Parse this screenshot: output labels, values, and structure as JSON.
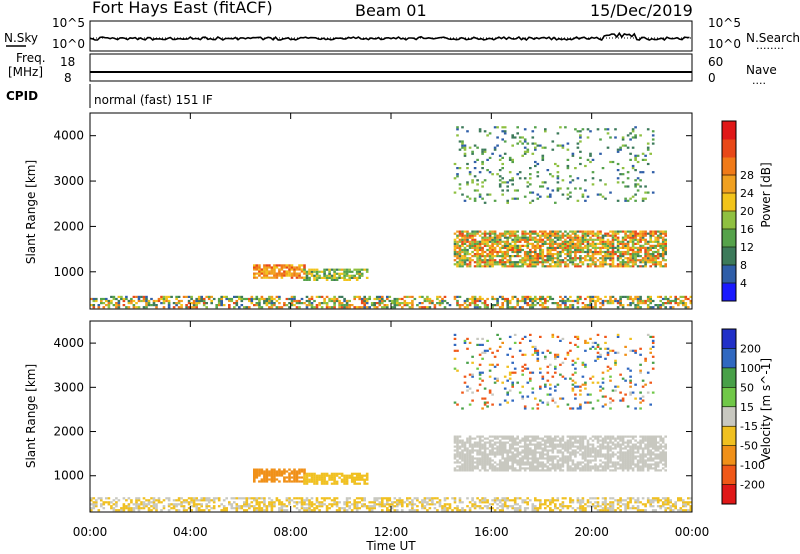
{
  "header": {
    "station": "Fort Hays East (fitACF)",
    "beam": "Beam 01",
    "date": "15/Dec/2019"
  },
  "noise_panel": {
    "left_label": "N.Sky",
    "left_ticks": [
      "10^5",
      "10^0"
    ],
    "right_ticks": [
      "10^5",
      "10^0"
    ],
    "right_label": "N.Search",
    "right_legend": "........"
  },
  "freq_panel": {
    "left_label_line1": "Freq.",
    "left_label_line2": "[MHz]",
    "left_ticks": [
      "18",
      "8"
    ],
    "right_ticks": [
      "60",
      "0"
    ],
    "right_label": "Nave",
    "right_legend": "....",
    "mode_label": "CPID",
    "mode_text": "normal (fast) 151 IF"
  },
  "chart_data": [
    {
      "type": "heatmap",
      "parameter": "power",
      "ylabel": "Slant Range [km]",
      "y_ticks": [
        "1000",
        "2000",
        "3000",
        "4000"
      ],
      "ylim": [
        180,
        4500
      ],
      "xlim_hours": [
        0,
        24
      ],
      "colorbar": {
        "label": "Power [dB]",
        "tick_labels": [
          "4",
          "8",
          "12",
          "16",
          "20",
          "24",
          "28"
        ],
        "colors": [
          "#1a1aff",
          "#2f5ea8",
          "#3c7a5a",
          "#55a24a",
          "#8fc040",
          "#f2c41a",
          "#f0a020",
          "#f07a18",
          "#e84818",
          "#e01818"
        ]
      },
      "regions": [
        {
          "feature": "near-range ground clutter",
          "t_start": "00:00",
          "t_end": "24:00",
          "range_km": [
            200,
            450
          ],
          "power_db": [
            4,
            28
          ]
        },
        {
          "feature": "morning patch",
          "t_start": "06:30",
          "t_end": "08:30",
          "range_km": [
            850,
            1150
          ],
          "power_db": [
            16,
            28
          ]
        },
        {
          "feature": "late-morning patch",
          "t_start": "08:30",
          "t_end": "11:00",
          "range_km": [
            800,
            1050
          ],
          "power_db": [
            8,
            20
          ]
        },
        {
          "feature": "afternoon band",
          "t_start": "14:30",
          "t_end": "23:00",
          "range_km": [
            1100,
            1900
          ],
          "power_db": [
            8,
            28
          ]
        },
        {
          "feature": "far-range scatter",
          "t_start": "14:30",
          "t_end": "22:30",
          "range_km": [
            2500,
            4200
          ],
          "power_db": [
            4,
            16
          ]
        }
      ]
    },
    {
      "type": "heatmap",
      "parameter": "velocity",
      "ylabel": "Slant Range [km]",
      "y_ticks": [
        "1000",
        "2000",
        "3000",
        "4000"
      ],
      "ylim": [
        180,
        4500
      ],
      "xlim_hours": [
        0,
        24
      ],
      "xlabel": "Time UT",
      "x_ticks": [
        "00:00",
        "04:00",
        "08:00",
        "12:00",
        "16:00",
        "20:00",
        "00:00"
      ],
      "colorbar": {
        "label": "Velocity [m s^-1]",
        "tick_labels": [
          "200",
          "100",
          "50",
          "15",
          "-15",
          "-50",
          "-100",
          "-200"
        ],
        "colors": [
          "#2030c8",
          "#3068c0",
          "#48a048",
          "#70c848",
          "#c8c8c0",
          "#f0c020",
          "#f09018",
          "#f05818",
          "#e01818"
        ]
      },
      "regions": [
        {
          "feature": "near-range ground scatter",
          "t_start": "00:00",
          "t_end": "24:00",
          "range_km": [
            200,
            500
          ],
          "velocity_ms": [
            -50,
            15
          ]
        },
        {
          "feature": "morning patch",
          "t_start": "06:30",
          "t_end": "08:30",
          "range_km": [
            850,
            1150
          ],
          "velocity_ms": [
            -100,
            -50
          ]
        },
        {
          "feature": "late-morning patch",
          "t_start": "08:30",
          "t_end": "11:00",
          "range_km": [
            800,
            1050
          ],
          "velocity_ms": [
            -50,
            -15
          ]
        },
        {
          "feature": "afternoon band",
          "t_start": "14:30",
          "t_end": "23:00",
          "range_km": [
            1100,
            1900
          ],
          "velocity_ms": [
            -15,
            15
          ]
        },
        {
          "feature": "far-range scatter",
          "t_start": "14:30",
          "t_end": "22:30",
          "range_km": [
            2500,
            4200
          ],
          "velocity_ms": [
            -200,
            200
          ]
        }
      ]
    }
  ]
}
